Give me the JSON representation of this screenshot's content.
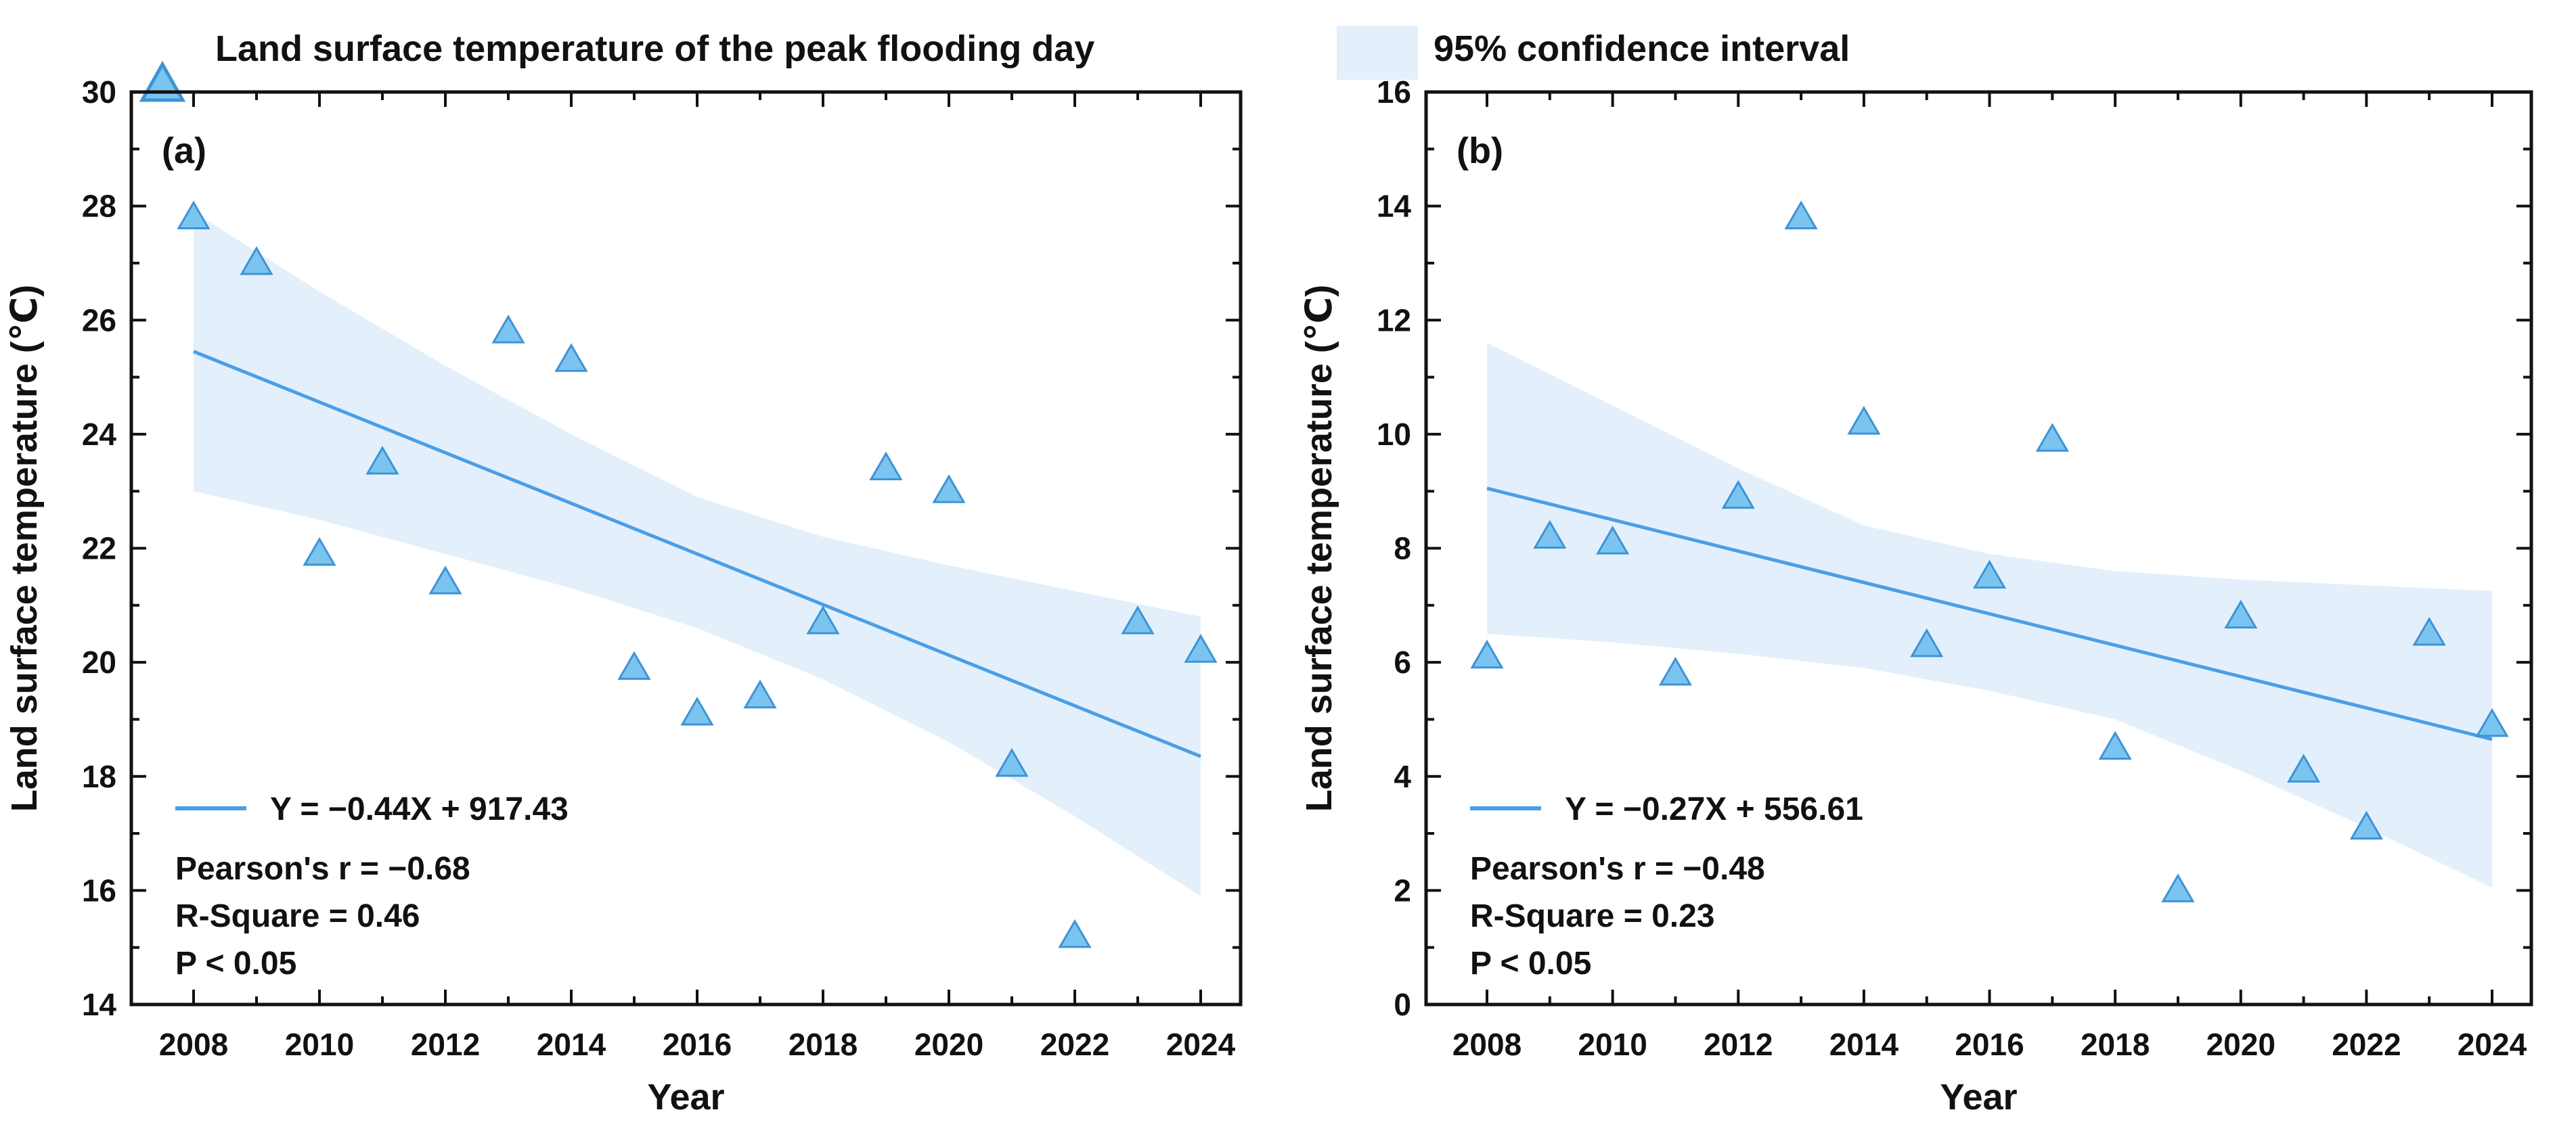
{
  "legend": {
    "marker_label": "Land surface temperature of the peak flooding day",
    "band_label": "95% confidence interval"
  },
  "colors": {
    "marker_fill": "#7cc4f0",
    "marker_stroke": "#3d93d6",
    "line": "#4a9ee6",
    "band": "#e3f0fb",
    "axis": "#111111"
  },
  "chart_data": [
    {
      "type": "scatter",
      "panel_label": "(a)",
      "xlabel": "Year",
      "ylabel": "Land surface temperature (℃)",
      "xlim": [
        2007,
        2025
      ],
      "ylim": [
        14,
        30
      ],
      "xticks": [
        2008,
        2010,
        2012,
        2014,
        2016,
        2018,
        2020,
        2022,
        2024
      ],
      "yticks": [
        14,
        16,
        18,
        20,
        22,
        24,
        26,
        28,
        30
      ],
      "x": [
        2008,
        2009,
        2010,
        2011,
        2012,
        2013,
        2014,
        2015,
        2016,
        2017,
        2018,
        2019,
        2020,
        2021,
        2022,
        2023,
        2024
      ],
      "y": [
        27.8,
        27.0,
        21.9,
        23.5,
        21.4,
        25.8,
        25.3,
        19.9,
        19.1,
        19.4,
        20.7,
        23.4,
        23.0,
        18.2,
        15.2,
        20.7,
        20.2
      ],
      "fit": {
        "slope": -0.44,
        "intercept": 917.43,
        "y_start": 25.45,
        "y_end": 18.35
      },
      "ci": {
        "years": [
          2008,
          2010,
          2012,
          2014,
          2016,
          2018,
          2020,
          2022,
          2024
        ],
        "upper": [
          27.9,
          26.5,
          25.2,
          24.0,
          22.9,
          22.2,
          21.7,
          21.25,
          20.8
        ],
        "lower": [
          23.0,
          22.5,
          21.9,
          21.3,
          20.6,
          19.7,
          18.6,
          17.3,
          15.9
        ]
      },
      "annotations": {
        "equation": "Y = −0.44X + 917.43",
        "pearson": "Pearson's r = −0.68",
        "r_square": "R-Square = 0.46",
        "p_value": "P < 0.05"
      }
    },
    {
      "type": "scatter",
      "panel_label": "(b)",
      "xlabel": "Year",
      "ylabel": "Land surface temperature (℃)",
      "xlim": [
        2007,
        2025
      ],
      "ylim": [
        0,
        16
      ],
      "xticks": [
        2008,
        2010,
        2012,
        2014,
        2016,
        2018,
        2020,
        2022,
        2024
      ],
      "yticks": [
        0,
        2,
        4,
        6,
        8,
        10,
        12,
        14,
        16
      ],
      "x": [
        2008,
        2009,
        2010,
        2011,
        2012,
        2013,
        2014,
        2015,
        2016,
        2017,
        2018,
        2019,
        2020,
        2021,
        2022,
        2023,
        2024
      ],
      "y": [
        6.1,
        8.2,
        8.1,
        5.8,
        8.9,
        13.8,
        10.2,
        6.3,
        7.5,
        9.9,
        4.5,
        2.0,
        6.8,
        4.1,
        3.1,
        6.5,
        4.9
      ],
      "fit": {
        "slope": -0.27,
        "intercept": 556.61,
        "y_start": 9.05,
        "y_end": 4.65
      },
      "ci": {
        "years": [
          2008,
          2010,
          2012,
          2014,
          2016,
          2018,
          2020,
          2022,
          2024
        ],
        "upper": [
          11.6,
          10.5,
          9.4,
          8.4,
          7.9,
          7.6,
          7.45,
          7.35,
          7.25
        ],
        "lower": [
          6.5,
          6.35,
          6.15,
          5.9,
          5.5,
          5.0,
          4.1,
          3.1,
          2.05
        ]
      },
      "annotations": {
        "equation": "Y = −0.27X + 556.61",
        "pearson": "Pearson's r = −0.48",
        "r_square": "R-Square = 0.23",
        "p_value": "P < 0.05"
      }
    }
  ]
}
